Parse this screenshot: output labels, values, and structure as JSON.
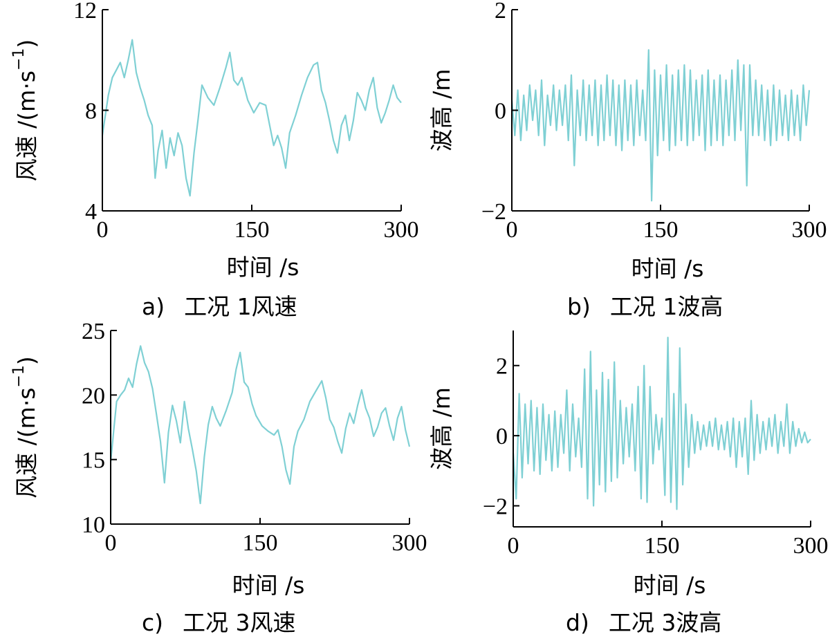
{
  "colors": {
    "series": "#7fd0d4",
    "axis": "#000000"
  },
  "chart_data": [
    {
      "id": "a",
      "type": "line",
      "caption_letter": "a)",
      "caption_text": "工况 1风速",
      "xlabel": "时间 /s",
      "ylabel": "风速 /(m·s",
      "ylabel_sup": "−1",
      "ylabel_close": ")",
      "xlim": [
        0,
        300
      ],
      "ylim": [
        4,
        12
      ],
      "xticks": [
        "0",
        "150",
        "300"
      ],
      "yticks": [
        "4",
        "8",
        "12"
      ],
      "series": [
        {
          "x": [
            0,
            3,
            6,
            10,
            14,
            18,
            22,
            26,
            30,
            34,
            38,
            42,
            46,
            50,
            53,
            56,
            60,
            64,
            68,
            72,
            76,
            80,
            84,
            88,
            92,
            96,
            100,
            106,
            112,
            118,
            124,
            128,
            132,
            136,
            140,
            146,
            152,
            158,
            164,
            168,
            172,
            176,
            180,
            184,
            188,
            194,
            200,
            206,
            212,
            216,
            220,
            224,
            228,
            232,
            236,
            240,
            244,
            248,
            252,
            256,
            260,
            264,
            268,
            272,
            276,
            280,
            284,
            288,
            292,
            296,
            300
          ],
          "y": [
            7.0,
            7.8,
            8.6,
            9.3,
            9.6,
            9.9,
            9.3,
            10.0,
            10.8,
            9.5,
            8.9,
            8.4,
            7.8,
            7.4,
            5.3,
            6.4,
            7.2,
            5.7,
            6.9,
            6.2,
            7.1,
            6.6,
            5.3,
            4.6,
            6.3,
            7.6,
            9.0,
            8.5,
            8.2,
            8.9,
            9.7,
            10.3,
            9.2,
            9.0,
            9.3,
            8.4,
            7.9,
            8.3,
            8.2,
            7.4,
            6.6,
            7.0,
            6.5,
            5.7,
            7.1,
            7.8,
            8.6,
            9.3,
            9.8,
            9.9,
            8.8,
            8.3,
            7.6,
            6.8,
            6.3,
            7.4,
            7.8,
            6.8,
            7.6,
            8.7,
            8.4,
            8.0,
            8.8,
            9.3,
            8.1,
            7.5,
            7.9,
            8.4,
            9.0,
            8.5,
            8.3
          ]
        }
      ]
    },
    {
      "id": "b",
      "type": "line",
      "caption_letter": "b)",
      "caption_text": "工况 1波高",
      "xlabel": "时间 /s",
      "ylabel": "波高 /m",
      "xlim": [
        0,
        300
      ],
      "ylim": [
        -2,
        2
      ],
      "xticks": [
        "0",
        "150",
        "300"
      ],
      "yticks": [
        "−2",
        "0",
        "2"
      ],
      "series": [
        {
          "x": [
            0,
            3,
            6,
            9,
            12,
            15,
            18,
            21,
            24,
            27,
            30,
            33,
            36,
            39,
            42,
            45,
            48,
            51,
            54,
            57,
            60,
            63,
            66,
            69,
            72,
            75,
            78,
            81,
            84,
            87,
            90,
            93,
            96,
            99,
            102,
            105,
            108,
            111,
            114,
            117,
            120,
            123,
            126,
            129,
            132,
            135,
            138,
            141,
            144,
            147,
            150,
            153,
            156,
            159,
            162,
            165,
            168,
            171,
            174,
            177,
            180,
            183,
            186,
            189,
            192,
            195,
            198,
            201,
            204,
            207,
            210,
            213,
            216,
            219,
            222,
            225,
            228,
            231,
            234,
            237,
            240,
            243,
            246,
            249,
            252,
            255,
            258,
            261,
            264,
            267,
            270,
            273,
            276,
            279,
            282,
            285,
            288,
            291,
            294,
            297,
            300
          ],
          "y": [
            0.2,
            -0.5,
            0.4,
            -0.6,
            0.3,
            -0.4,
            0.5,
            -0.2,
            0.4,
            -0.5,
            0.6,
            -0.7,
            0.3,
            -0.3,
            0.5,
            -0.4,
            0.4,
            -0.3,
            0.5,
            -0.6,
            0.7,
            -1.1,
            0.4,
            -0.5,
            0.6,
            -0.6,
            0.5,
            -0.5,
            0.6,
            -0.7,
            0.5,
            -0.6,
            0.7,
            -0.5,
            0.6,
            -0.7,
            0.5,
            -0.8,
            0.6,
            -0.6,
            0.5,
            -0.7,
            0.6,
            -0.5,
            0.4,
            -0.6,
            1.2,
            -1.8,
            0.8,
            -0.9,
            0.7,
            -0.6,
            0.9,
            -0.8,
            0.7,
            -0.7,
            0.8,
            -0.6,
            0.9,
            -0.7,
            0.8,
            -0.6,
            0.6,
            -0.5,
            0.7,
            -0.8,
            0.8,
            -0.7,
            0.6,
            -0.6,
            0.7,
            -0.7,
            0.6,
            -0.5,
            0.8,
            -0.6,
            1.0,
            -0.4,
            0.9,
            -1.5,
            0.9,
            -0.5,
            0.6,
            -0.5,
            0.5,
            -0.6,
            0.4,
            -0.7,
            0.5,
            -0.6,
            0.4,
            -0.5,
            0.3,
            -0.6,
            0.4,
            -0.5,
            0.3,
            -0.6,
            0.5,
            -0.3,
            0.4
          ]
        }
      ]
    },
    {
      "id": "c",
      "type": "line",
      "caption_letter": "c)",
      "caption_text": "工况 3风速",
      "xlabel": "时间 /s",
      "ylabel": "风速 /(m·s",
      "ylabel_sup": "−1",
      "ylabel_close": ")",
      "xlim": [
        0,
        300
      ],
      "ylim": [
        10,
        25
      ],
      "xticks": [
        "0",
        "150",
        "300"
      ],
      "yticks": [
        "10",
        "15",
        "20",
        "25"
      ],
      "series": [
        {
          "x": [
            0,
            3,
            6,
            10,
            14,
            18,
            22,
            26,
            30,
            34,
            38,
            42,
            46,
            50,
            54,
            58,
            62,
            66,
            70,
            74,
            78,
            82,
            86,
            90,
            94,
            98,
            102,
            106,
            110,
            116,
            122,
            126,
            130,
            134,
            138,
            142,
            146,
            152,
            158,
            164,
            168,
            172,
            176,
            180,
            184,
            188,
            194,
            200,
            206,
            212,
            216,
            220,
            224,
            228,
            232,
            236,
            240,
            244,
            248,
            252,
            256,
            260,
            264,
            268,
            272,
            276,
            280,
            284,
            288,
            292,
            296,
            300
          ],
          "y": [
            14.8,
            17.2,
            19.5,
            20.0,
            20.4,
            21.3,
            20.6,
            22.4,
            23.8,
            22.5,
            21.8,
            20.5,
            18.5,
            16.4,
            13.2,
            17.1,
            19.2,
            18.0,
            16.3,
            19.5,
            17.4,
            15.8,
            14.1,
            11.6,
            15.2,
            17.7,
            19.1,
            18.2,
            17.6,
            18.8,
            20.2,
            22.0,
            23.3,
            21.0,
            20.6,
            19.3,
            18.4,
            17.6,
            17.2,
            16.9,
            17.3,
            16.0,
            14.2,
            13.1,
            16.0,
            17.2,
            18.1,
            19.5,
            20.3,
            21.1,
            19.8,
            18.1,
            17.5,
            16.4,
            15.5,
            17.4,
            18.6,
            17.8,
            19.2,
            20.4,
            19.0,
            18.2,
            16.8,
            17.5,
            18.6,
            19.0,
            17.6,
            16.5,
            18.2,
            19.1,
            17.3,
            16.0
          ]
        }
      ]
    },
    {
      "id": "d",
      "type": "line",
      "caption_letter": "d)",
      "caption_text": "工况 3波高",
      "xlabel": "时间 /s",
      "ylabel": "波高 /m",
      "xlim": [
        0,
        300
      ],
      "ylim": [
        -2.6,
        3.0
      ],
      "xticks": [
        "0",
        "150",
        "300"
      ],
      "yticks": [
        "−2",
        "0",
        "2"
      ],
      "series": [
        {
          "x": [
            0,
            3,
            6,
            9,
            12,
            15,
            18,
            21,
            24,
            27,
            30,
            33,
            36,
            39,
            42,
            45,
            48,
            51,
            54,
            57,
            60,
            63,
            66,
            69,
            72,
            75,
            78,
            81,
            84,
            87,
            90,
            93,
            96,
            99,
            102,
            105,
            108,
            111,
            114,
            117,
            120,
            123,
            126,
            129,
            132,
            135,
            138,
            141,
            144,
            147,
            150,
            153,
            156,
            159,
            162,
            165,
            168,
            171,
            174,
            177,
            180,
            183,
            186,
            189,
            192,
            195,
            198,
            201,
            204,
            207,
            210,
            213,
            216,
            219,
            222,
            225,
            228,
            231,
            234,
            237,
            240,
            243,
            246,
            249,
            252,
            255,
            258,
            261,
            264,
            267,
            270,
            273,
            276,
            279,
            282,
            285,
            288,
            291,
            294,
            297,
            300
          ],
          "y": [
            -0.5,
            -1.8,
            1.2,
            -1.2,
            0.9,
            -0.8,
            1.0,
            -1.0,
            0.8,
            -1.1,
            0.9,
            -0.7,
            0.6,
            -1.0,
            0.7,
            -0.9,
            0.6,
            -0.5,
            1.3,
            -1.0,
            0.9,
            -0.6,
            0.5,
            -0.9,
            1.9,
            -1.8,
            2.4,
            -2.0,
            1.3,
            -1.4,
            1.8,
            -1.6,
            1.6,
            -1.3,
            2.1,
            -1.2,
            1.0,
            -0.8,
            0.8,
            -0.6,
            0.9,
            -1.0,
            1.4,
            -1.8,
            2.0,
            -1.9,
            1.4,
            -0.8,
            0.6,
            -0.4,
            0.5,
            -1.7,
            2.8,
            -1.9,
            1.2,
            -2.1,
            2.5,
            -1.4,
            0.9,
            -0.9,
            0.6,
            -0.5,
            0.4,
            -0.4,
            0.3,
            -0.3,
            0.4,
            -0.3,
            0.5,
            -0.4,
            0.3,
            -0.4,
            0.4,
            -0.6,
            0.5,
            -0.9,
            0.4,
            -0.6,
            0.5,
            -1.1,
            1.0,
            -0.7,
            0.6,
            -0.5,
            0.4,
            -0.4,
            0.5,
            -0.3,
            0.6,
            -0.5,
            0.4,
            -0.3,
            0.9,
            -0.5,
            0.4,
            -0.3,
            0.2,
            -0.2,
            0.1,
            -0.2,
            -0.1
          ]
        }
      ]
    }
  ]
}
